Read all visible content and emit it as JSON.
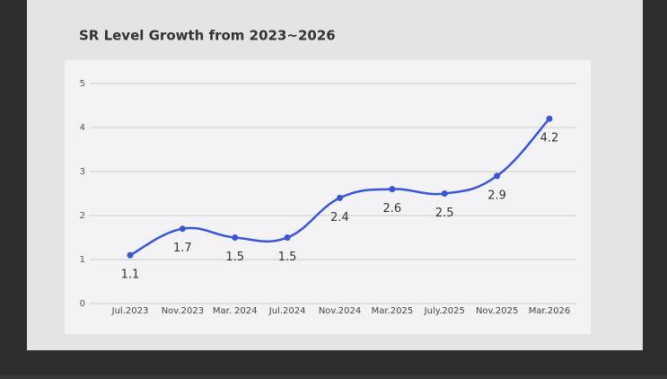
{
  "chart_data": {
    "type": "line",
    "title": "SR Level Growth from 2023~2026",
    "categories": [
      "Jul.2023",
      "Nov.2023",
      "Mar. 2024",
      "Jul.2024",
      "Nov.2024",
      "Mar.2025",
      "July.2025",
      "Nov.2025",
      "Mar.2026"
    ],
    "values": [
      1.1,
      1.7,
      1.5,
      1.5,
      2.4,
      2.6,
      2.5,
      2.9,
      4.2
    ],
    "color": "#3a56d4",
    "ylim": [
      0,
      5
    ],
    "yticks": [
      0,
      1,
      2,
      3,
      4,
      5
    ],
    "grid": true
  }
}
